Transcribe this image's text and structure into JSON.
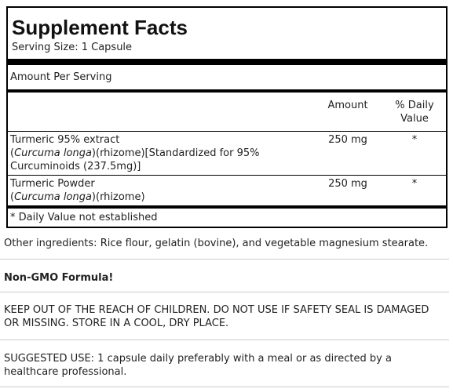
{
  "supplement_facts": {
    "title": "Supplement Facts",
    "serving_size": "Serving Size: 1 Capsule",
    "amount_per_serving": "Amount Per Serving",
    "columns": [
      "Amount",
      "% Daily Value"
    ],
    "rows": [
      {
        "name": "Turmeric 95% extract",
        "description": [
          "(",
          "Curcuma longa",
          ")(rhizome)[Standardized for 95% Curcuminoids (237.5mg)]"
        ],
        "amount": "250 mg",
        "daily_value": "*"
      },
      {
        "name": "Turmeric Powder",
        "description": [
          "(",
          "Curcuma longa",
          ")(rhizome)"
        ],
        "amount": "250 mg",
        "daily_value": "*"
      }
    ],
    "footnote": "* Daily Value not established"
  },
  "sections": [
    "Other ingredients: Rice flour, gelatin (bovine), and vegetable magnesium stearate.",
    "Non-GMO Formula!",
    "KEEP OUT OF THE REACH OF CHILDREN. DO NOT USE IF SAFETY SEAL IS DAMAGED OR MISSING. STORE IN A COOL, DRY PLACE.",
    "SUGGESTED USE: 1 capsule daily preferably with a meal or as directed by a healthcare professional."
  ]
}
